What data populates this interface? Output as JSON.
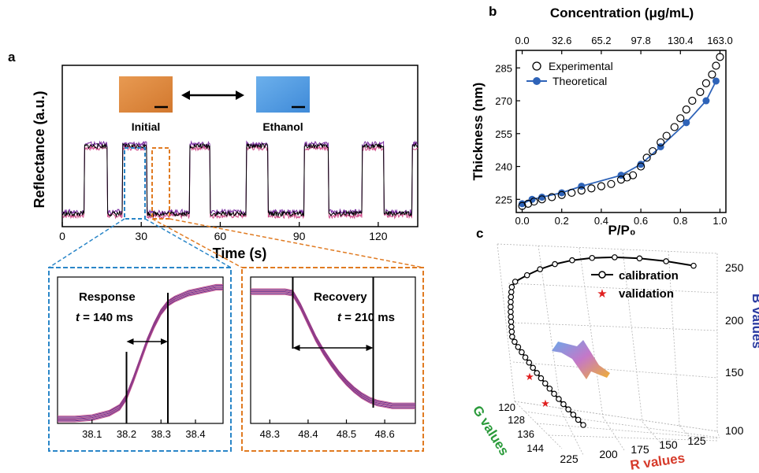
{
  "panel_labels": {
    "a": "a",
    "b": "b",
    "c": "c"
  },
  "colors": {
    "initial_swatch": "#e08a42",
    "ethanol_swatch": "#5aa2e2",
    "blue_box": "#2a86c8",
    "orange_box": "#e07b22",
    "theoretical": "#2e63b8",
    "validation": "#e02020",
    "g_axis_title": "#2a9a3a",
    "r_axis_title": "#d63a2a",
    "b_axis_title": "#2a3aa0"
  },
  "chart_data": [
    {
      "id": "a-main",
      "type": "line",
      "xlabel": "Time (s)",
      "ylabel": "Reflectance (a.u.)",
      "xlim": [
        0,
        135
      ],
      "xticks": [
        0,
        30,
        60,
        90,
        120
      ],
      "ylim": [
        0,
        1
      ],
      "high_level": 0.5,
      "low_level": 0.08,
      "high_intervals": [
        [
          8.5,
          17
        ],
        [
          23,
          32
        ],
        [
          48.5,
          56
        ],
        [
          70,
          78
        ],
        [
          92,
          101
        ],
        [
          114,
          122
        ],
        [
          133,
          135
        ]
      ],
      "annotations": {
        "initial": "Initial",
        "ethanol": "Ethanol"
      }
    },
    {
      "id": "a-response",
      "type": "line",
      "xlim": [
        38.0,
        38.48
      ],
      "xticks": [
        38.1,
        38.2,
        38.3,
        38.4
      ],
      "label": "Response",
      "t_label": "t",
      "t_value": "= 140 ms",
      "x": [
        38.0,
        38.05,
        38.1,
        38.15,
        38.18,
        38.2,
        38.22,
        38.24,
        38.26,
        38.28,
        38.3,
        38.32,
        38.34,
        38.36,
        38.38,
        38.4,
        38.42,
        38.44,
        38.46,
        38.48
      ],
      "y": [
        0.03,
        0.03,
        0.04,
        0.07,
        0.11,
        0.18,
        0.3,
        0.43,
        0.56,
        0.67,
        0.76,
        0.82,
        0.85,
        0.87,
        0.89,
        0.9,
        0.91,
        0.92,
        0.93,
        0.93
      ],
      "markers": [
        38.2,
        38.32
      ]
    },
    {
      "id": "a-recovery",
      "type": "line",
      "xlim": [
        48.25,
        48.68
      ],
      "xticks": [
        48.3,
        48.4,
        48.5,
        48.6
      ],
      "label": "Recovery",
      "t_label": "t",
      "t_value": "= 210 ms",
      "x": [
        48.25,
        48.3,
        48.34,
        48.36,
        48.38,
        48.4,
        48.42,
        48.44,
        48.46,
        48.48,
        48.5,
        48.52,
        48.54,
        48.56,
        48.58,
        48.6,
        48.62,
        48.65,
        48.68
      ],
      "y": [
        0.9,
        0.9,
        0.9,
        0.89,
        0.8,
        0.69,
        0.58,
        0.49,
        0.41,
        0.34,
        0.28,
        0.23,
        0.19,
        0.16,
        0.14,
        0.13,
        0.12,
        0.12,
        0.12
      ],
      "markers": [
        48.36,
        48.57
      ]
    },
    {
      "id": "b",
      "type": "scatter",
      "xlabel": "P/P₀",
      "x2label": "Concentration (μg/mL)",
      "ylabel": "Thickness (nm)",
      "xlim": [
        -0.03,
        1.03
      ],
      "ylim": [
        219,
        293
      ],
      "xticks": [
        "0.0",
        "0.2",
        "0.4",
        "0.6",
        "0.8",
        "1.0"
      ],
      "x2ticks": [
        "0.0",
        "32.6",
        "65.2",
        "97.8",
        "130.4",
        "163.0"
      ],
      "yticks": [
        225,
        240,
        255,
        270,
        285
      ],
      "series": [
        {
          "name": "Experimental",
          "x": [
            0,
            0.03,
            0.06,
            0.1,
            0.15,
            0.2,
            0.25,
            0.3,
            0.35,
            0.4,
            0.45,
            0.5,
            0.53,
            0.56,
            0.6,
            0.63,
            0.66,
            0.7,
            0.73,
            0.77,
            0.8,
            0.83,
            0.86,
            0.9,
            0.93,
            0.96,
            0.98,
            1.0
          ],
          "y": [
            222,
            223,
            224,
            225,
            226,
            227,
            228,
            229,
            230,
            231,
            232,
            234,
            235,
            236,
            240,
            244,
            247,
            251,
            254,
            258,
            262,
            266,
            270,
            274,
            278,
            282,
            286,
            290
          ]
        },
        {
          "name": "Theoretical",
          "x": [
            0,
            0.05,
            0.1,
            0.2,
            0.3,
            0.5,
            0.6,
            0.7,
            0.83,
            0.93,
            0.98
          ],
          "y": [
            223,
            225,
            226,
            228,
            231,
            236,
            241,
            249,
            260,
            270,
            279
          ]
        }
      ]
    },
    {
      "id": "c",
      "type": "scatter",
      "xlabel": "R values",
      "ylabel": "G values",
      "zlabel": "B values",
      "r_ticks": [
        "225",
        "200",
        "175",
        "150",
        "125"
      ],
      "g_ticks": [
        "120",
        "128",
        "136",
        "144"
      ],
      "b_ticks": [
        "100",
        "150",
        "200",
        "250"
      ],
      "series": [
        {
          "name": "calibration"
        },
        {
          "name": "validation"
        }
      ]
    }
  ]
}
